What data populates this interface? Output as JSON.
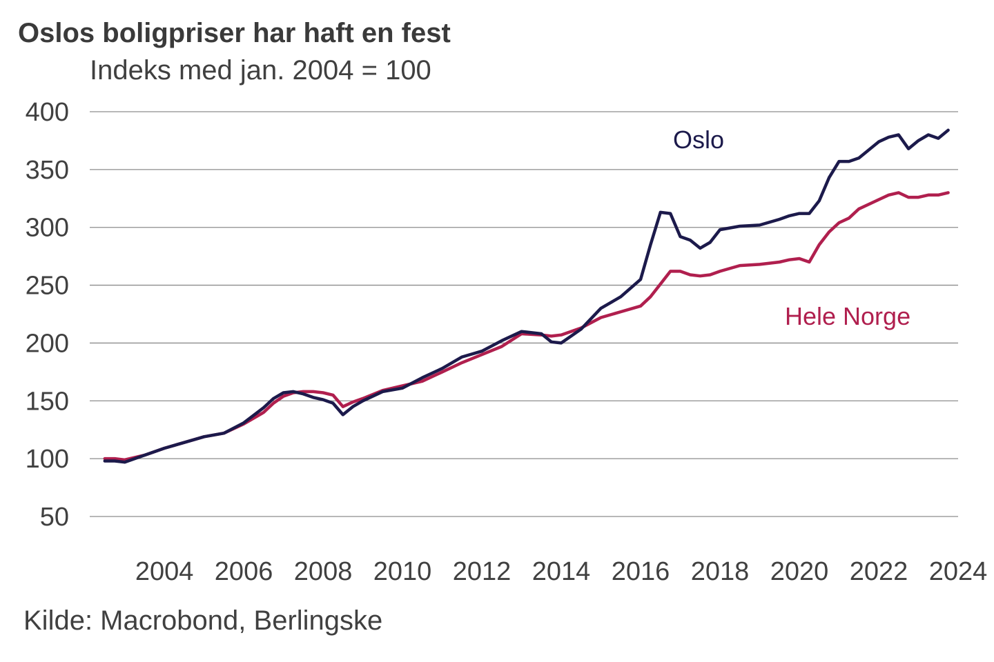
{
  "chart_data": {
    "type": "line",
    "title": "Oslos boligpriser har haft en fest",
    "subtitle": "Indeks med jan. 2004 = 100",
    "source": "Kilde: Macrobond, Berlingske",
    "xlabel": "",
    "ylabel": "",
    "ylim": [
      50,
      400
    ],
    "yticks": [
      400,
      350,
      300,
      250,
      200,
      150,
      100,
      50
    ],
    "xticks": [
      "2004",
      "2006",
      "2008",
      "2010",
      "2012",
      "2014",
      "2016",
      "2018",
      "2020",
      "2022",
      "2024"
    ],
    "grid": true,
    "x": [
      2003.0,
      2003.25,
      2003.5,
      2004.0,
      2004.5,
      2005.0,
      2005.5,
      2006.0,
      2006.5,
      2007.0,
      2007.25,
      2007.5,
      2007.75,
      2008.0,
      2008.25,
      2008.5,
      2008.75,
      2009.0,
      2009.25,
      2009.5,
      2010.0,
      2010.5,
      2011.0,
      2011.5,
      2012.0,
      2012.5,
      2013.0,
      2013.5,
      2014.0,
      2014.25,
      2014.5,
      2015.0,
      2015.5,
      2016.0,
      2016.5,
      2016.75,
      2017.0,
      2017.25,
      2017.5,
      2017.75,
      2018.0,
      2018.25,
      2018.5,
      2019.0,
      2019.5,
      2020.0,
      2020.25,
      2020.5,
      2020.75,
      2021.0,
      2021.25,
      2021.5,
      2021.75,
      2022.0,
      2022.5,
      2022.75,
      2023.0,
      2023.25,
      2023.5,
      2023.75,
      2024.0,
      2024.25
    ],
    "series": [
      {
        "name": "Oslo",
        "color": "#1c1a4b",
        "values": [
          98,
          98,
          97,
          103,
          109,
          114,
          119,
          122,
          131,
          144,
          152,
          157,
          158,
          156,
          153,
          151,
          148,
          138,
          145,
          150,
          158,
          161,
          170,
          178,
          188,
          193,
          202,
          210,
          208,
          201,
          200,
          212,
          230,
          240,
          255,
          285,
          313,
          312,
          292,
          289,
          282,
          287,
          298,
          301,
          302,
          307,
          310,
          312,
          312,
          323,
          343,
          357,
          357,
          360,
          374,
          378,
          380,
          368,
          375,
          380,
          377,
          384
        ]
      },
      {
        "name": "Hele Norge",
        "color": "#b01f4e",
        "values": [
          100,
          100,
          99,
          103,
          109,
          114,
          119,
          122,
          130,
          140,
          148,
          154,
          157,
          158,
          158,
          157,
          155,
          145,
          149,
          152,
          159,
          163,
          167,
          175,
          183,
          190,
          197,
          208,
          207,
          206,
          207,
          213,
          222,
          227,
          232,
          240,
          251,
          262,
          262,
          259,
          258,
          259,
          262,
          267,
          268,
          270,
          272,
          273,
          270,
          285,
          296,
          304,
          308,
          316,
          324,
          328,
          330,
          326,
          326,
          328,
          328,
          330
        ]
      }
    ],
    "series_labels": [
      {
        "text": "Oslo"
      },
      {
        "text": "Hele Norge"
      }
    ]
  }
}
